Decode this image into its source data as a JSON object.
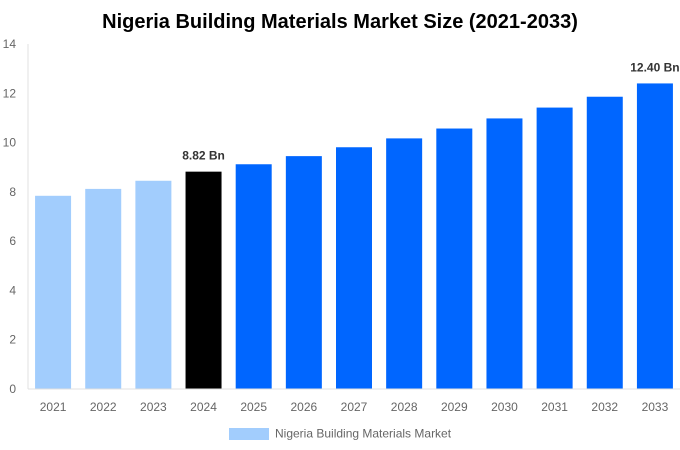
{
  "chart_data": {
    "type": "bar",
    "title": "Nigeria Building Materials Market Size (2021-2033)",
    "xlabel": "",
    "ylabel": "",
    "ylim": [
      0,
      14
    ],
    "yticks": [
      0,
      2,
      4,
      6,
      8,
      10,
      12,
      14
    ],
    "grid": false,
    "legend_position": "bottom",
    "categories": [
      "2021",
      "2022",
      "2023",
      "2024",
      "2025",
      "2026",
      "2027",
      "2028",
      "2029",
      "2030",
      "2031",
      "2032",
      "2033"
    ],
    "series": [
      {
        "name": "Nigeria Building Materials Market",
        "values": [
          7.84,
          8.12,
          8.45,
          8.82,
          9.12,
          9.45,
          9.81,
          10.17,
          10.57,
          10.98,
          11.42,
          11.86,
          12.4
        ]
      }
    ],
    "bar_colors": [
      "#a2cdfd",
      "#a2cdfd",
      "#a2cdfd",
      "#000000",
      "#0066ff",
      "#0066ff",
      "#0066ff",
      "#0066ff",
      "#0066ff",
      "#0066ff",
      "#0066ff",
      "#0066ff",
      "#0066ff"
    ],
    "legend_color": "#a2cdfd",
    "data_labels": [
      {
        "category": "2024",
        "text": "8.82 Bn"
      },
      {
        "category": "2033",
        "text": "12.40 Bn"
      }
    ]
  }
}
